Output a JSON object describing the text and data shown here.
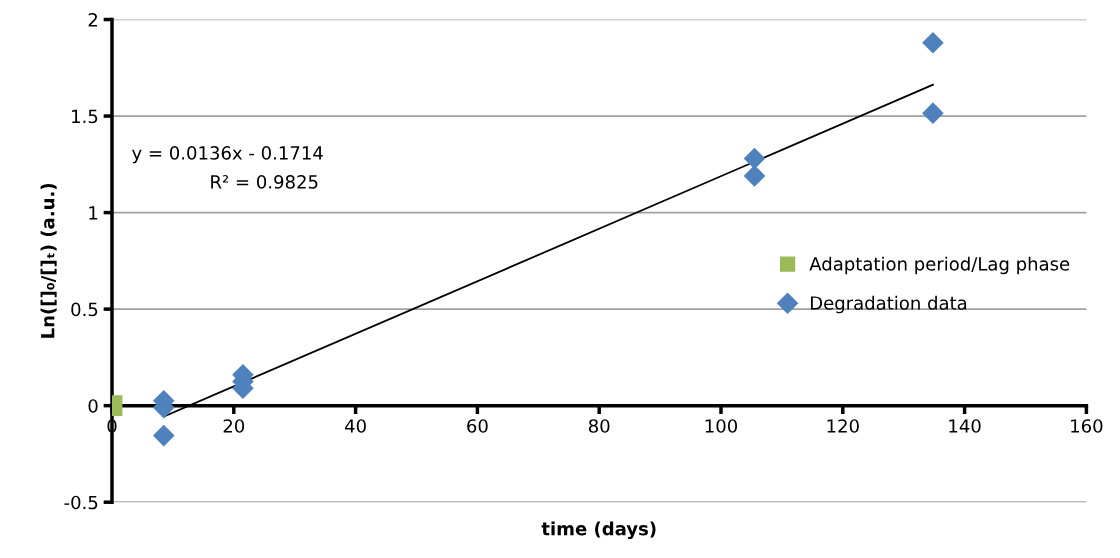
{
  "chart_data": {
    "type": "scatter",
    "xlabel": "time (days)",
    "ylabel": "Ln([]₀/[]ₜ) (a.u.)",
    "xlim": [
      0,
      160
    ],
    "xticks": [
      0,
      20,
      40,
      60,
      80,
      100,
      120,
      140,
      160
    ],
    "ylim": [
      -0.5,
      2
    ],
    "yticks": [
      -0.5,
      0,
      0.5,
      1,
      1.5,
      2
    ],
    "grid": "y",
    "legend": "right",
    "series": [
      {
        "name": "Adaptation period/Lag phase",
        "color": "#9bbb59",
        "marker": "square",
        "x": [
          0
        ],
        "values": [
          0
        ]
      },
      {
        "name": "Degradation data",
        "color": "#4f81bd",
        "marker": "diamond",
        "x": [
          8.5,
          8.5,
          8.5,
          21.5,
          21.5,
          21.5,
          105.5,
          105.5,
          134.8,
          134.8
        ],
        "values": [
          0.025,
          -0.01,
          -0.155,
          0.16,
          0.125,
          0.09,
          1.28,
          1.19,
          1.88,
          1.515
        ]
      },
      {
        "type": "line",
        "color": "#000000",
        "marker": "none",
        "x": [
          8.5,
          134.8
        ],
        "values": [
          -0.056,
          1.662
        ]
      }
    ],
    "annotations": [
      "y = 0.0136x - 0.1714",
      "R² = 0.9825"
    ]
  }
}
